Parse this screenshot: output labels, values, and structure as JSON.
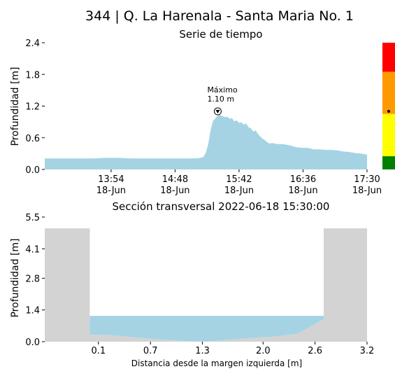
{
  "figure": {
    "title": "344 | Q. La Harenala - Santa Maria No. 1"
  },
  "colors": {
    "water": "#a5d3e3",
    "terrain": "#d3d3d3",
    "alert_levels": [
      "#ff0000",
      "#ff9900",
      "#ffff00",
      "#008000"
    ]
  },
  "chart_data": [
    {
      "type": "area",
      "title": "Serie de tiempo",
      "ylabel": "Profundidad [m]",
      "xlabel": "",
      "ylim": [
        0,
        2.4
      ],
      "yticks": [
        "0.0",
        "0.6",
        "1.2",
        "1.8",
        "2.4"
      ],
      "xticks": [
        {
          "time": "13:54",
          "date": "18-Jun",
          "minutes": 834
        },
        {
          "time": "14:48",
          "date": "18-Jun",
          "minutes": 888
        },
        {
          "time": "15:42",
          "date": "18-Jun",
          "minutes": 942
        },
        {
          "time": "16:36",
          "date": "18-Jun",
          "minutes": 996
        },
        {
          "time": "17:30",
          "date": "18-Jun",
          "minutes": 1050
        }
      ],
      "xlim_minutes": [
        778,
        1050
      ],
      "series": [
        {
          "x_minutes": [
            778,
            790,
            800,
            810,
            820,
            830,
            840,
            850,
            860,
            870,
            880,
            890,
            900,
            905,
            910,
            912,
            914,
            916,
            918,
            920,
            922,
            924,
            926,
            928,
            930,
            932,
            934,
            936,
            938,
            940,
            942,
            944,
            946,
            948,
            950,
            952,
            954,
            956,
            958,
            960,
            962,
            964,
            966,
            968,
            970,
            972,
            975,
            978,
            982,
            986,
            990,
            995,
            1000,
            1005,
            1010,
            1015,
            1020,
            1025,
            1030,
            1035,
            1040,
            1045,
            1050
          ],
          "y": [
            0.21,
            0.21,
            0.21,
            0.21,
            0.21,
            0.22,
            0.22,
            0.21,
            0.21,
            0.21,
            0.21,
            0.21,
            0.21,
            0.21,
            0.22,
            0.24,
            0.32,
            0.48,
            0.75,
            0.92,
            0.97,
            1.02,
            1.03,
            1.01,
            0.99,
            1.0,
            0.96,
            0.97,
            0.91,
            0.93,
            0.88,
            0.89,
            0.85,
            0.87,
            0.8,
            0.78,
            0.72,
            0.74,
            0.67,
            0.62,
            0.58,
            0.55,
            0.51,
            0.49,
            0.5,
            0.49,
            0.48,
            0.48,
            0.47,
            0.45,
            0.42,
            0.41,
            0.41,
            0.38,
            0.38,
            0.37,
            0.37,
            0.36,
            0.34,
            0.33,
            0.31,
            0.3,
            0.28
          ]
        }
      ],
      "annotation": {
        "label": "Máximo",
        "value_text": "1.10 m",
        "x_minutes": 924,
        "y": 1.1
      },
      "alert_bar": {
        "levels": [
          {
            "color": "#ff0000",
            "from": 2.4,
            "to": 1.85
          },
          {
            "color": "#ff9900",
            "from": 1.85,
            "to": 1.05
          },
          {
            "color": "#ffff00",
            "from": 1.05,
            "to": 0.25
          },
          {
            "color": "#008000",
            "from": 0.25,
            "to": 0.0
          }
        ],
        "marker": 1.1
      }
    },
    {
      "type": "area",
      "title": "Sección transversal 2022-06-18 15:30:00",
      "xlabel": "Distancia desde la margen izquierda [m]",
      "ylabel": "Profundidad [m]",
      "xlim": [
        -0.52,
        3.2
      ],
      "ylim": [
        0,
        5.5
      ],
      "xticks": [
        "0.1",
        "0.7",
        "1.3",
        "2.0",
        "2.6",
        "3.2"
      ],
      "xtick_values": [
        0.1,
        0.7,
        1.3,
        2.0,
        2.6,
        3.2
      ],
      "yticks": [
        "0.0",
        "1.4",
        "2.8",
        "4.1",
        "5.5"
      ],
      "ytick_values": [
        0.0,
        1.4,
        2.8,
        4.1,
        5.5
      ],
      "water_level": 1.14,
      "bed_profile": {
        "x": [
          0.0,
          0.2,
          0.5,
          0.8,
          1.1,
          1.3,
          1.5,
          1.8,
          2.1,
          2.4,
          2.7
        ],
        "y": [
          0.3,
          0.3,
          0.2,
          0.1,
          0.03,
          0.0,
          0.05,
          0.15,
          0.22,
          0.35,
          1.0
        ]
      },
      "banks": {
        "left_x": 0.0,
        "right_x": 2.7,
        "top": 5.0
      }
    }
  ]
}
